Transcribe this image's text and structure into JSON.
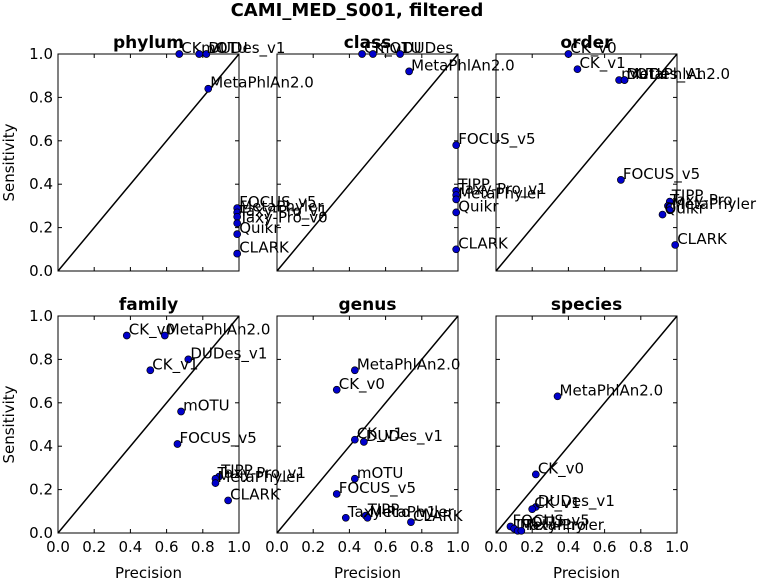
{
  "chart_data": {
    "type": "scatter",
    "title": "CAMI_MED_S001, filtered",
    "xlabel": "Precision",
    "ylabel": "Sensitivity",
    "xlim": [
      0,
      1
    ],
    "ylim": [
      0,
      1
    ],
    "ticks": [
      "0.0",
      "0.2",
      "0.4",
      "0.6",
      "0.8",
      "1.0"
    ],
    "diagonal": true,
    "point_color": "#0000cc",
    "panels": [
      {
        "title": "phylum",
        "points": [
          {
            "label": "CK_v0",
            "x": 0.67,
            "y": 1.0
          },
          {
            "label": "DUDes_v1",
            "x": 0.82,
            "y": 1.0
          },
          {
            "label": "mOTU",
            "x": 0.78,
            "y": 1.0
          },
          {
            "label": "MetaPhlAn2.0",
            "x": 0.83,
            "y": 0.84
          },
          {
            "label": "FOCUS_v5",
            "x": 0.99,
            "y": 0.29
          },
          {
            "label": "MetaPhyler",
            "x": 0.99,
            "y": 0.27
          },
          {
            "label": "Taxy-Pro_v1",
            "x": 0.99,
            "y": 0.25
          },
          {
            "label": "Taxy-Pro_v0",
            "x": 0.99,
            "y": 0.22
          },
          {
            "label": "Quikr",
            "x": 0.99,
            "y": 0.17
          },
          {
            "label": "CLARK",
            "x": 0.99,
            "y": 0.08
          }
        ]
      },
      {
        "title": "class",
        "points": [
          {
            "label": "CK_v1",
            "x": 0.47,
            "y": 1.0
          },
          {
            "label": "mOTU",
            "x": 0.53,
            "y": 1.0
          },
          {
            "label": "DUDes",
            "x": 0.68,
            "y": 1.0
          },
          {
            "label": "MetaPhlAn2.0",
            "x": 0.73,
            "y": 0.92
          },
          {
            "label": "FOCUS_v5",
            "x": 0.99,
            "y": 0.58
          },
          {
            "label": "TIPP",
            "x": 0.99,
            "y": 0.37
          },
          {
            "label": "Taxy-Pro_v1",
            "x": 0.99,
            "y": 0.35
          },
          {
            "label": "MetaPhyler",
            "x": 0.99,
            "y": 0.33
          },
          {
            "label": "Quikr",
            "x": 0.99,
            "y": 0.27
          },
          {
            "label": "CLARK",
            "x": 0.99,
            "y": 0.1
          }
        ]
      },
      {
        "title": "order",
        "points": [
          {
            "label": "CK_v0",
            "x": 0.4,
            "y": 1.0
          },
          {
            "label": "CK_v1",
            "x": 0.45,
            "y": 0.93
          },
          {
            "label": "mOTU",
            "x": 0.68,
            "y": 0.88
          },
          {
            "label": "DUDes_v1",
            "x": 0.71,
            "y": 0.88
          },
          {
            "label": "MetaPhlAn2.0",
            "x": 0.71,
            "y": 0.88
          },
          {
            "label": "FOCUS_v5",
            "x": 0.69,
            "y": 0.42
          },
          {
            "label": "TIPP",
            "x": 0.96,
            "y": 0.32
          },
          {
            "label": "Taxy-Pro",
            "x": 0.95,
            "y": 0.3
          },
          {
            "label": "MetaPhyler",
            "x": 0.96,
            "y": 0.28
          },
          {
            "label": "Quikr",
            "x": 0.92,
            "y": 0.26
          },
          {
            "label": "CLARK",
            "x": 0.99,
            "y": 0.12
          }
        ]
      },
      {
        "title": "family",
        "points": [
          {
            "label": "CK_v0",
            "x": 0.38,
            "y": 0.91
          },
          {
            "label": "MetaPhlAn2.0",
            "x": 0.59,
            "y": 0.91
          },
          {
            "label": "DUDes_v1",
            "x": 0.72,
            "y": 0.8
          },
          {
            "label": "CK_v1",
            "x": 0.51,
            "y": 0.75
          },
          {
            "label": "mOTU",
            "x": 0.68,
            "y": 0.56
          },
          {
            "label": "FOCUS_v5",
            "x": 0.66,
            "y": 0.41
          },
          {
            "label": "TIPP",
            "x": 0.89,
            "y": 0.26
          },
          {
            "label": "Taxy-Pro_v1",
            "x": 0.87,
            "y": 0.25
          },
          {
            "label": "MetaPhyler",
            "x": 0.87,
            "y": 0.23
          },
          {
            "label": "CLARK",
            "x": 0.94,
            "y": 0.15
          }
        ]
      },
      {
        "title": "genus",
        "points": [
          {
            "label": "MetaPhlAn2.0",
            "x": 0.43,
            "y": 0.75
          },
          {
            "label": "CK_v0",
            "x": 0.33,
            "y": 0.66
          },
          {
            "label": "CK_v1",
            "x": 0.43,
            "y": 0.43
          },
          {
            "label": "DUDes_v1",
            "x": 0.48,
            "y": 0.42
          },
          {
            "label": "mOTU",
            "x": 0.43,
            "y": 0.25
          },
          {
            "label": "FOCUS_v5",
            "x": 0.33,
            "y": 0.18
          },
          {
            "label": "TIPP",
            "x": 0.49,
            "y": 0.08
          },
          {
            "label": "MetaPhyler",
            "x": 0.5,
            "y": 0.07
          },
          {
            "label": "Taxy-Pro_v1",
            "x": 0.38,
            "y": 0.07
          },
          {
            "label": "CLARK",
            "x": 0.74,
            "y": 0.05
          }
        ]
      },
      {
        "title": "species",
        "points": [
          {
            "label": "MetaPhlAn2.0",
            "x": 0.34,
            "y": 0.63
          },
          {
            "label": "CK_v0",
            "x": 0.22,
            "y": 0.27
          },
          {
            "label": "DUDes_v1",
            "x": 0.22,
            "y": 0.12
          },
          {
            "label": "CK_v1",
            "x": 0.2,
            "y": 0.11
          },
          {
            "label": "FOCUS_v5",
            "x": 0.08,
            "y": 0.03
          },
          {
            "label": "mOTU",
            "x": 0.1,
            "y": 0.02
          },
          {
            "label": "MetaPhyler",
            "x": 0.12,
            "y": 0.01
          },
          {
            "label": "Taxy-Pro",
            "x": 0.14,
            "y": 0.01
          }
        ]
      }
    ]
  }
}
